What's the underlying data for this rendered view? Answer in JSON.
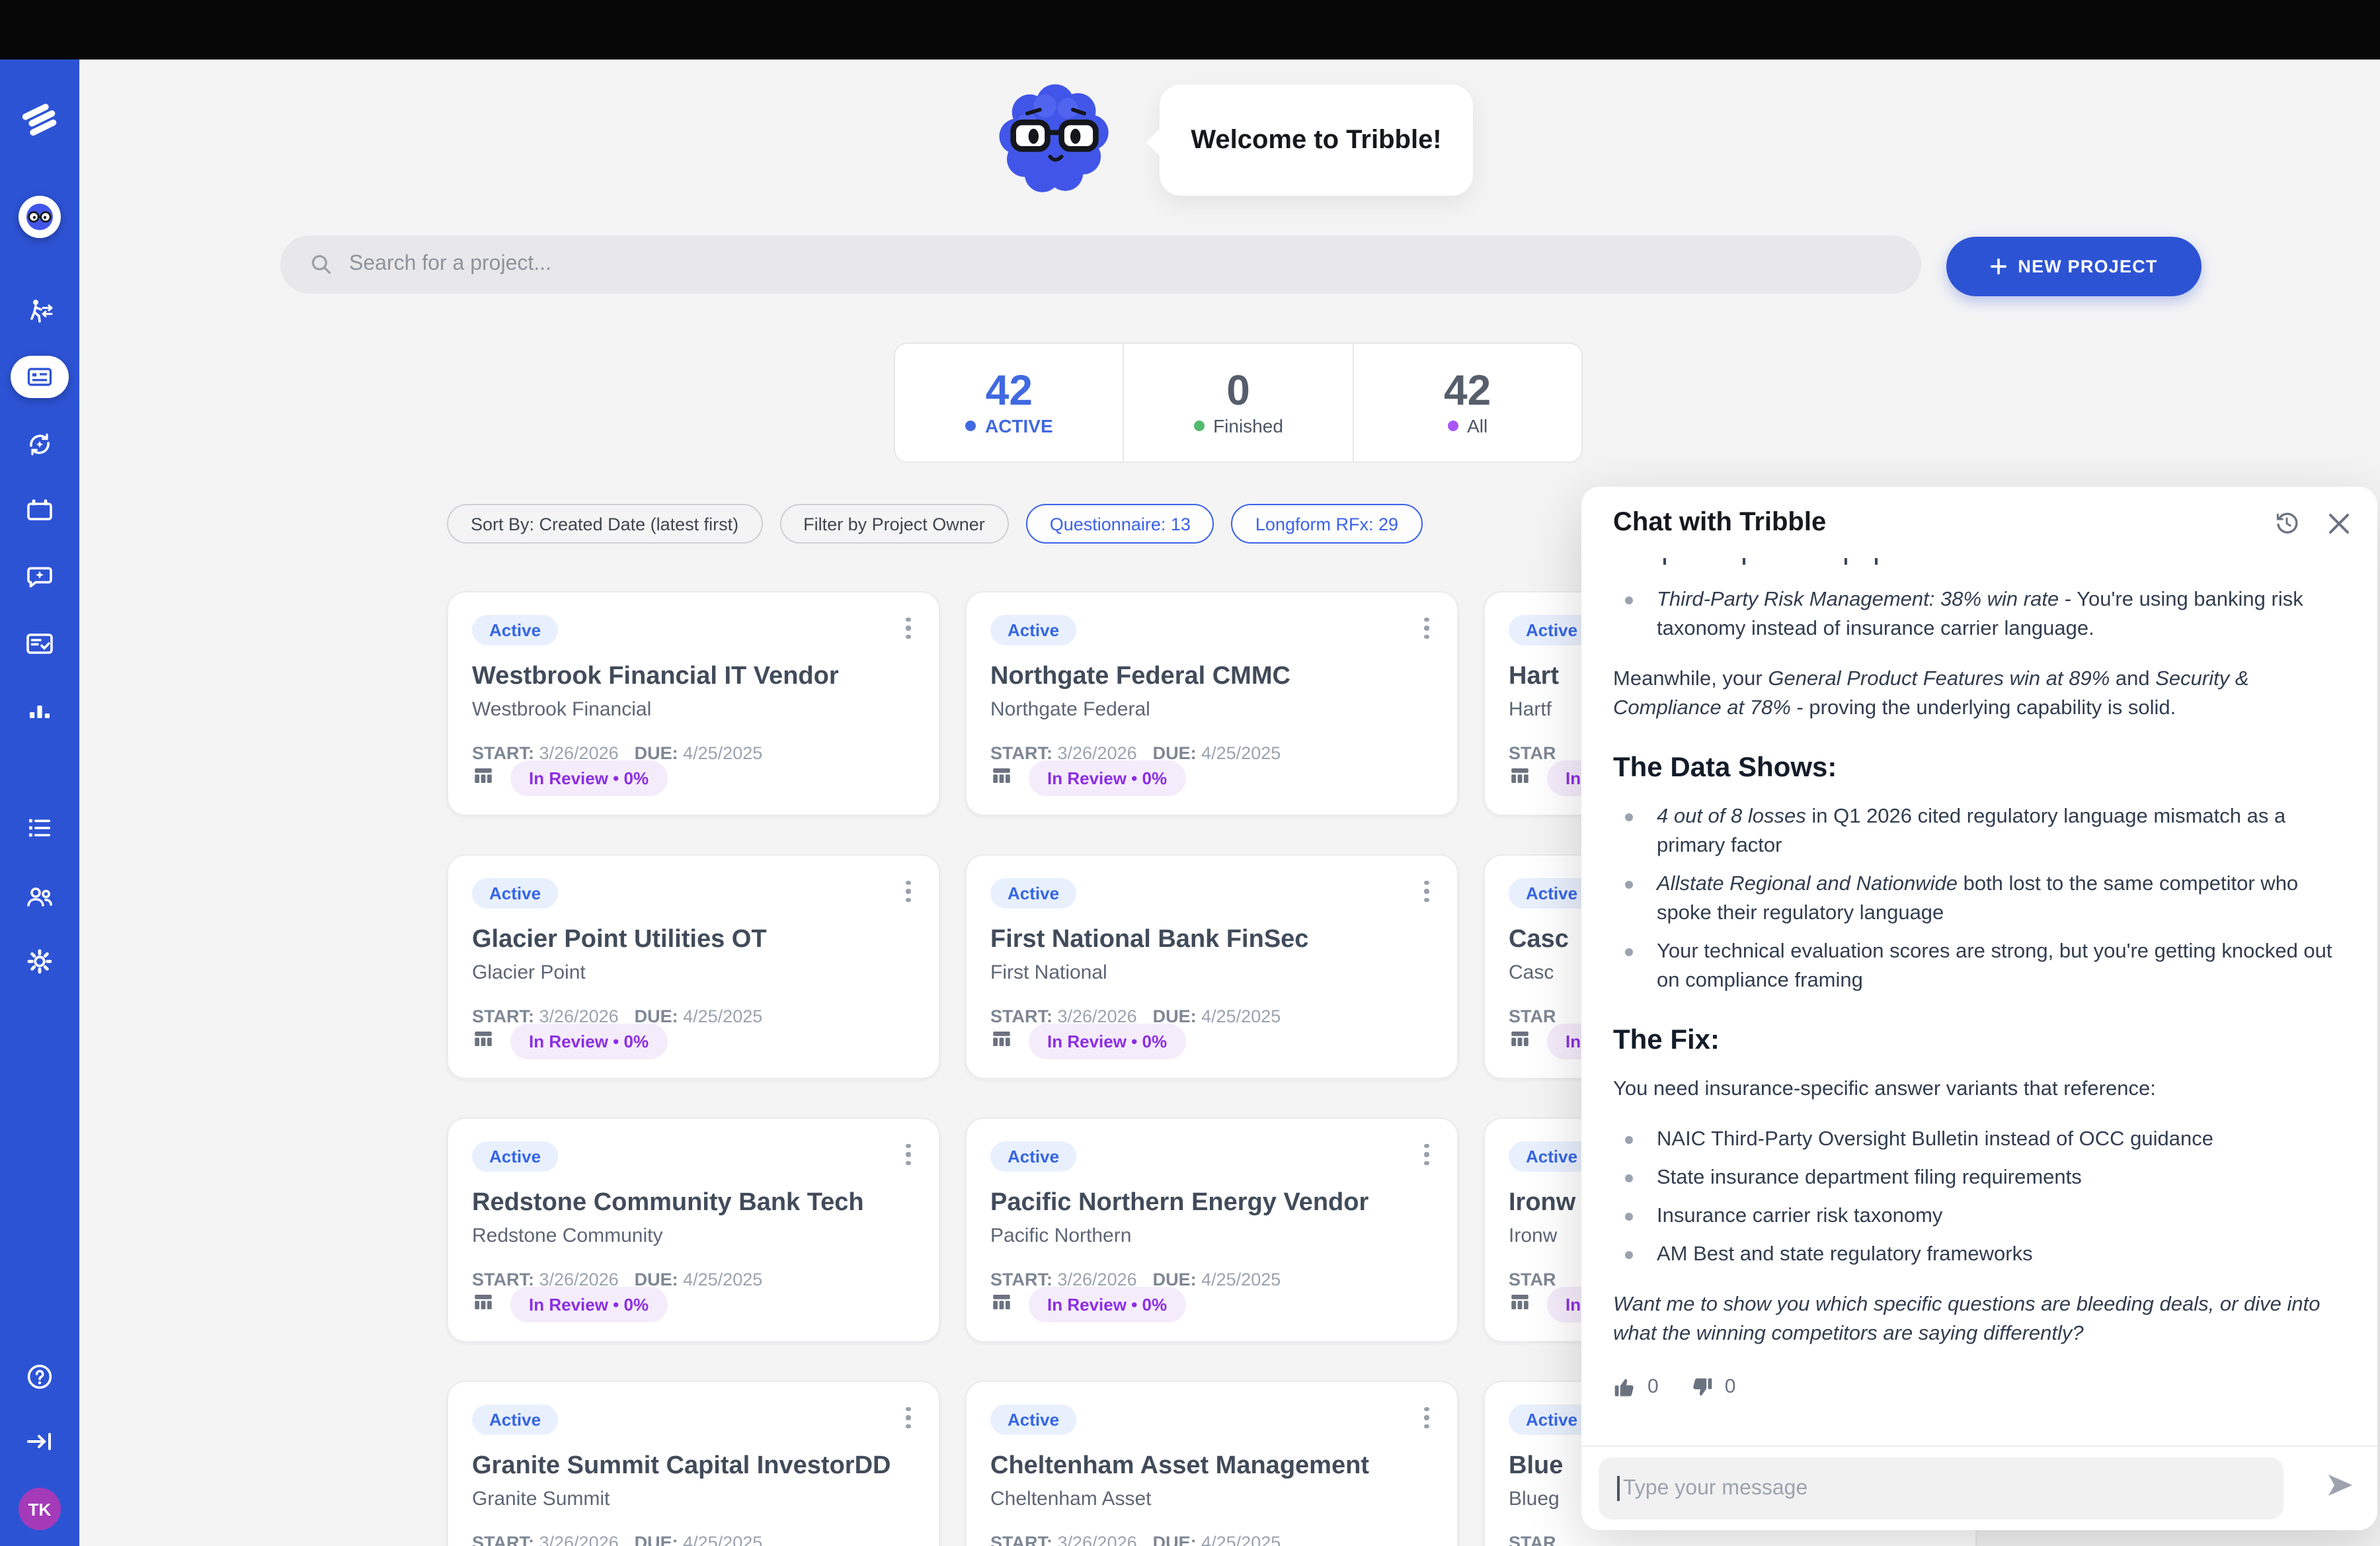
{
  "header": {
    "welcome_text": "Welcome to Tribble!"
  },
  "search": {
    "placeholder": "Search for a project...",
    "new_project_label": "NEW PROJECT"
  },
  "stats": {
    "items": [
      {
        "value": "42",
        "label": "ACTIVE",
        "dot_color": "#4169e1",
        "accent": true
      },
      {
        "value": "0",
        "label": "Finished",
        "dot_color": "#53b96e",
        "accent": false
      },
      {
        "value": "42",
        "label": "All",
        "dot_color": "#a855f7",
        "accent": false
      }
    ]
  },
  "filters": {
    "chips": [
      {
        "label": "Sort By: Created Date (latest first)",
        "variant": "default"
      },
      {
        "label": "Filter by Project Owner",
        "variant": "default"
      },
      {
        "label": "Questionnaire: 13",
        "variant": "accent"
      },
      {
        "label": "Longform RFx: 29",
        "variant": "accent"
      }
    ]
  },
  "projects": {
    "badge_label": "Active",
    "start_label": "START:",
    "due_label": "DUE:",
    "status_label": "In Review • 0%",
    "cards": [
      {
        "title": "Westbrook Financial IT Vendor",
        "client": "Westbrook Financial",
        "start": "3/26/2026",
        "due": "4/25/2025",
        "partial": false
      },
      {
        "title": "Northgate Federal CMMC",
        "client": "Northgate Federal",
        "start": "3/26/2026",
        "due": "4/25/2025",
        "partial": false
      },
      {
        "title": "Hart",
        "client": "Hartf",
        "start": "",
        "due": "",
        "partial": true
      },
      {
        "title": "Glacier Point Utilities OT",
        "client": "Glacier Point",
        "start": "3/26/2026",
        "due": "4/25/2025",
        "partial": false
      },
      {
        "title": "First National Bank FinSec",
        "client": "First National",
        "start": "3/26/2026",
        "due": "4/25/2025",
        "partial": false
      },
      {
        "title": "Casc",
        "client": "Casc",
        "start": "",
        "due": "",
        "partial": true
      },
      {
        "title": "Redstone Community Bank Tech",
        "client": "Redstone Community",
        "start": "3/26/2026",
        "due": "4/25/2025",
        "partial": false
      },
      {
        "title": "Pacific Northern Energy Vendor",
        "client": "Pacific Northern",
        "start": "3/26/2026",
        "due": "4/25/2025",
        "partial": false
      },
      {
        "title": "Ironw",
        "client": "Ironw",
        "start": "",
        "due": "",
        "partial": true
      },
      {
        "title": "Granite Summit Capital InvestorDD",
        "client": "Granite Summit",
        "start": "3/26/2026",
        "due": "4/25/2025",
        "partial": false
      },
      {
        "title": "Cheltenham Asset Management",
        "client": "Cheltenham Asset",
        "start": "3/26/2026",
        "due": "4/25/2025",
        "partial": false
      },
      {
        "title": "Blue",
        "client": "Blueg",
        "start": "",
        "due": "",
        "partial": true
      }
    ],
    "partial_start_fragment": "STAR"
  },
  "chat": {
    "title": "Chat with Tribble",
    "blocks": [
      {
        "type": "clipped"
      },
      {
        "type": "bullets",
        "items": [
          {
            "segments": [
              {
                "t": "Third-Party Risk Management: 38% win rate",
                "i": true
              },
              {
                "t": " - You're using banking risk taxonomy instead of insurance carrier language."
              }
            ]
          }
        ]
      },
      {
        "type": "p",
        "segments": [
          {
            "t": "Meanwhile, your "
          },
          {
            "t": "General Product Features win at 89%",
            "i": true
          },
          {
            "t": " and "
          },
          {
            "t": "Security & Compliance at 78%",
            "i": true
          },
          {
            "t": " - proving the underlying capability is solid."
          }
        ]
      },
      {
        "type": "h",
        "text": "The Data Shows:"
      },
      {
        "type": "bullets",
        "items": [
          {
            "segments": [
              {
                "t": "4 out of 8 losses",
                "i": true
              },
              {
                "t": " in Q1 2026 cited regulatory language mismatch as a primary factor"
              }
            ]
          },
          {
            "segments": [
              {
                "t": "Allstate Regional and Nationwide",
                "i": true
              },
              {
                "t": " both lost to the same competitor who spoke their regulatory language"
              }
            ]
          },
          {
            "segments": [
              {
                "t": "Your technical evaluation scores are strong, but you're getting knocked out on compliance framing"
              }
            ]
          }
        ]
      },
      {
        "type": "h",
        "text": "The Fix:"
      },
      {
        "type": "p",
        "segments": [
          {
            "t": "You need insurance-specific answer variants that reference:"
          }
        ]
      },
      {
        "type": "bullets",
        "items": [
          {
            "segments": [
              {
                "t": "NAIC Third-Party Oversight Bulletin instead of OCC guidance"
              }
            ]
          },
          {
            "segments": [
              {
                "t": "State insurance department filing requirements"
              }
            ]
          },
          {
            "segments": [
              {
                "t": "Insurance carrier risk taxonomy"
              }
            ]
          },
          {
            "segments": [
              {
                "t": "AM Best and state regulatory frameworks"
              }
            ]
          }
        ]
      },
      {
        "type": "p",
        "segments": [
          {
            "t": "Want me to show you which specific questions are bleeding deals, or dive into what the winning competitors are saying differently?",
            "i": true
          }
        ]
      }
    ],
    "likes": "0",
    "dislikes": "0",
    "input_placeholder": "Type your message"
  },
  "sidebar": {
    "avatar_initials": "TK"
  },
  "colors": {
    "sidebar_blue": "#2d53d5",
    "accent_blue": "#3c62e9",
    "status_purple": "#8c2ee2",
    "avatar_purple": "#a43ab8",
    "active_green": "#53b96e",
    "all_purple": "#a855f7"
  }
}
